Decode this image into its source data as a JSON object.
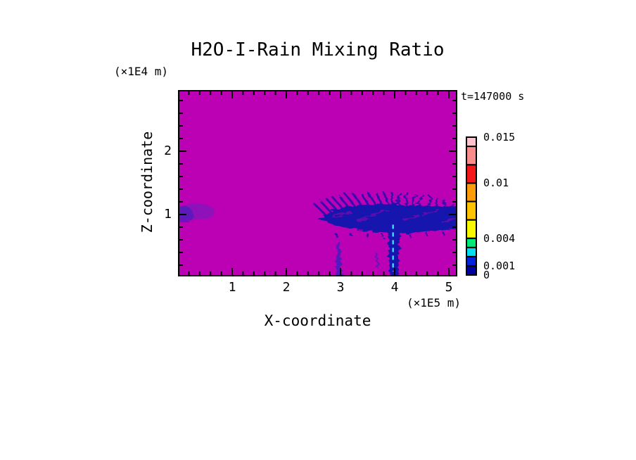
{
  "figure": {
    "title": "H2O-I-Rain Mixing Ratio",
    "time_annotation": "t=147000 s",
    "y_axis_unit": "(×1E4 m)",
    "x_axis_unit": "(×1E5 m)",
    "x_axis_title": "X-coordinate",
    "y_axis_title": "Z-coordinate"
  },
  "chart_data": {
    "type": "heatmap",
    "title": "H2O-I-Rain Mixing Ratio",
    "xlabel": "X-coordinate",
    "ylabel": "Z-coordinate",
    "x_unit_scale": "(×1E5 m)",
    "y_unit_scale": "(×1E4 m)",
    "time_label": "t=147000 s",
    "xlim": [
      0,
      5.16
    ],
    "ylim": [
      0,
      2.97
    ],
    "x_major_ticks": [
      1,
      2,
      3,
      4,
      5
    ],
    "y_major_ticks": [
      1,
      2
    ],
    "x_minor_step": 0.2,
    "y_minor_step": 0.2,
    "grid": false,
    "field_background": {
      "value": 0,
      "color": "#BC00B4"
    },
    "palette": {
      "rain_dark": "#1612AE",
      "rain_mid": "#3A1EC0",
      "wisp": "#6A22BE",
      "core_cyan": "#35DCF0"
    },
    "colorbar": {
      "levels": [
        0,
        0.001,
        0.002,
        0.003,
        0.004,
        0.006,
        0.008,
        0.01,
        0.012,
        0.014,
        0.015
      ],
      "colors_bottom_to_top": [
        "#0000A0",
        "#0022DD",
        "#00DCF0",
        "#00E878",
        "#F8F800",
        "#FFC300",
        "#FF9C0A",
        "#F51717",
        "#FA8C8C",
        "#FFC3CD"
      ],
      "tick_labels": [
        {
          "text": "0.015",
          "value": 0.015
        },
        {
          "text": "0.01",
          "value": 0.01
        },
        {
          "text": "0.004",
          "value": 0.004
        },
        {
          "text": "0.001",
          "value": 0.001
        },
        {
          "text": "0",
          "value": 0
        }
      ]
    },
    "features": {
      "description": "Magenta background = zero rain. Dark blue anvil-shaped rain cloud band near z=1 between x=2.4 and x=5.16 with feathered streaky top, a vertical precipitation shaft at x=3.9-4.1 reaching the ground with a dashed cyan high-value core, a thin shaft at x=2.95, a small streak at x=3.66, and a faint wisp at the left edge near z=1.",
      "left_wisp": {
        "x_range": [
          0,
          0.74
        ],
        "z_range": [
          0.9,
          1.19
        ]
      },
      "cloud_band": {
        "x_range": [
          2.43,
          5.16
        ],
        "z_range": [
          0.72,
          1.11
        ]
      },
      "rays": [
        [
          2.5,
          1.18,
          2.72,
          1.0
        ],
        [
          2.62,
          1.22,
          2.84,
          1.02
        ],
        [
          2.74,
          1.25,
          2.96,
          1.04
        ],
        [
          2.86,
          1.27,
          3.08,
          1.05
        ],
        [
          2.98,
          1.29,
          3.2,
          1.06
        ],
        [
          3.1,
          1.31,
          3.32,
          1.07
        ],
        [
          3.24,
          1.32,
          3.44,
          1.08
        ],
        [
          3.38,
          1.33,
          3.56,
          1.09
        ],
        [
          3.52,
          1.33,
          3.68,
          1.1
        ],
        [
          3.66,
          1.34,
          3.8,
          1.1
        ],
        [
          3.8,
          1.34,
          3.92,
          1.1
        ],
        [
          3.95,
          1.34,
          3.99,
          1.12
        ],
        [
          4.1,
          1.34,
          4.06,
          1.1
        ],
        [
          4.24,
          1.33,
          4.16,
          1.09
        ],
        [
          4.38,
          1.32,
          4.28,
          1.08
        ],
        [
          4.52,
          1.3,
          4.4,
          1.07
        ],
        [
          4.66,
          1.27,
          4.54,
          1.06
        ],
        [
          4.8,
          1.24,
          4.68,
          1.04
        ],
        [
          4.94,
          1.2,
          4.82,
          1.03
        ],
        [
          5.08,
          1.16,
          4.96,
          1.01
        ],
        [
          5.18,
          1.12,
          5.06,
          1.0
        ]
      ],
      "drips": [
        [
          2.92,
          0.7,
          2.92,
          0.65
        ],
        [
          3.2,
          0.71,
          3.2,
          0.65
        ],
        [
          3.5,
          0.7,
          3.5,
          0.64
        ],
        [
          3.78,
          0.69,
          3.78,
          0.64
        ],
        [
          4.28,
          0.7,
          4.28,
          0.64
        ],
        [
          4.6,
          0.71,
          4.6,
          0.66
        ],
        [
          4.9,
          0.72,
          4.9,
          0.67
        ]
      ],
      "inner_streaks": [
        [
          2.85,
          0.97,
          3.2,
          1.04
        ],
        [
          3.3,
          0.9,
          3.65,
          0.99
        ],
        [
          3.55,
          1.0,
          3.9,
          1.06
        ],
        [
          4.15,
          0.92,
          4.45,
          0.99
        ],
        [
          4.5,
          0.99,
          4.85,
          1.06
        ],
        [
          4.86,
          0.88,
          5.12,
          0.94
        ]
      ],
      "main_shaft": {
        "x_range": [
          3.88,
          4.1
        ],
        "z_range": [
          0,
          0.97
        ]
      },
      "shaft_core_dashed": {
        "x": 3.97,
        "z_range": [
          0.1,
          0.84
        ]
      },
      "thin_shaft": {
        "x_range": [
          2.92,
          3.03
        ],
        "z_range": [
          0,
          0.62
        ]
      },
      "mini_streak": {
        "x": 3.66,
        "z_range": [
          0.15,
          0.4
        ]
      }
    }
  }
}
